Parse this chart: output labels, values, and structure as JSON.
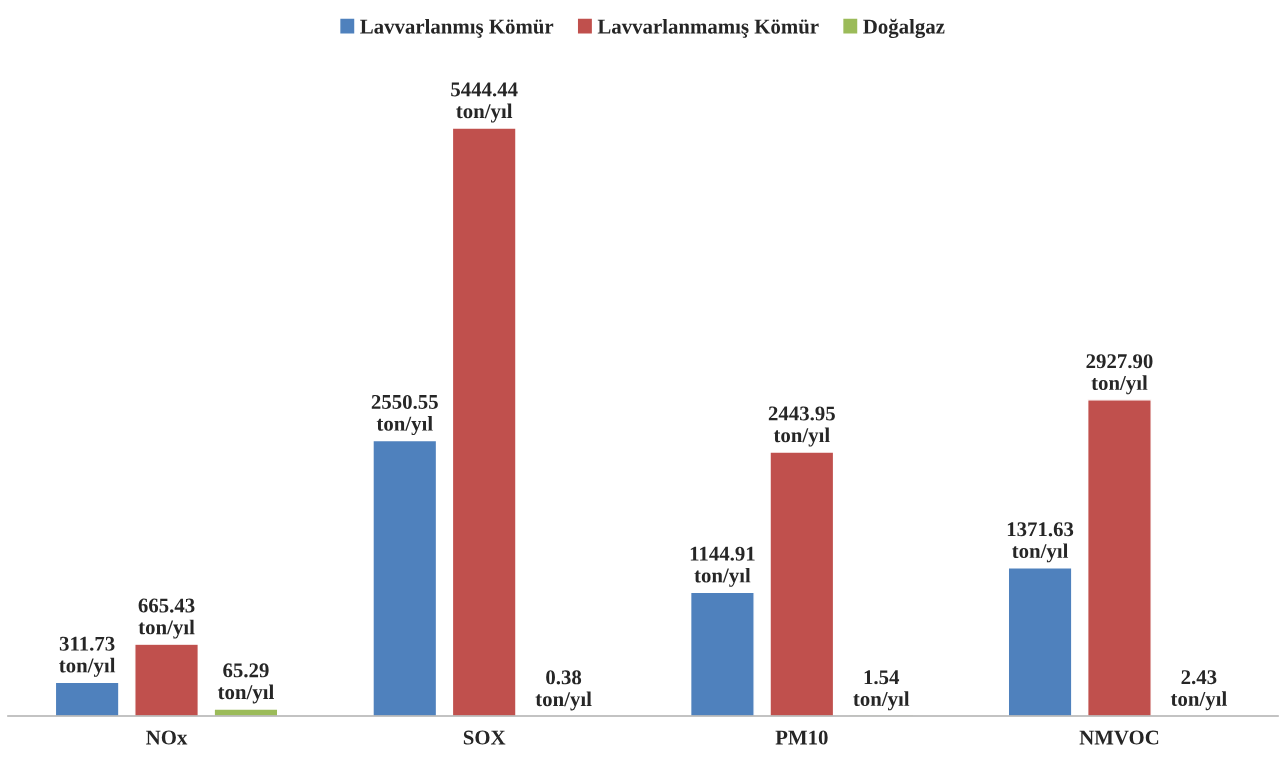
{
  "chart_data": {
    "type": "bar",
    "categories": [
      "NOx",
      "SOX",
      "PM10",
      "NMVOC"
    ],
    "legend": "top",
    "grid": false,
    "series": [
      {
        "name": "Lavvarlanmış Kömür",
        "color": "#4f81bd",
        "values": [
          311.73,
          2550.55,
          1144.91,
          1371.63
        ],
        "value_labels": [
          "311.73\nton/yıl",
          "2550.55\nton/yıl",
          "1144.91\nton/yıl",
          "1371.63\nton/yıl"
        ]
      },
      {
        "name": "Lavvarlanmamış Kömür",
        "color": "#c0504d",
        "values": [
          665.43,
          5444.44,
          2443.95,
          2927.9
        ],
        "value_labels": [
          "665.43\nton/yıl",
          "5444.44\nton/yıl",
          "2443.95\nton/yıl",
          "2927.90\nton/yıl"
        ]
      },
      {
        "name": "Doğalgaz",
        "color": "#9bbb59",
        "values": [
          65.29,
          0.38,
          1.54,
          2.43
        ],
        "value_labels": [
          "65.29\nton/yıl",
          "0.38\nton/yıl",
          "1.54\nton/yıl",
          "2.43\nton/yıl"
        ]
      }
    ]
  }
}
